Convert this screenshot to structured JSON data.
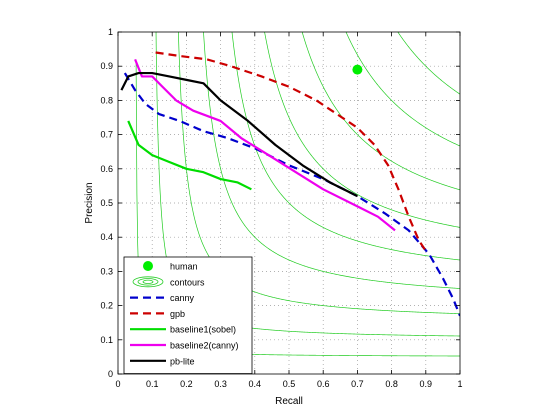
{
  "chart_data": {
    "type": "line",
    "xlabel": "Recall",
    "ylabel": "Precision",
    "xlim": [
      0,
      1
    ],
    "ylim": [
      0,
      1
    ],
    "xticks": [
      "0",
      "0.1",
      "0.2",
      "0.3",
      "0.4",
      "0.5",
      "0.6",
      "0.7",
      "0.8",
      "0.9",
      "1"
    ],
    "yticks": [
      "0",
      "0.1",
      "0.2",
      "0.3",
      "0.4",
      "0.5",
      "0.6",
      "0.7",
      "0.8",
      "0.9",
      "1"
    ],
    "grid": true,
    "grid_style": "dotted",
    "legend_position": "bottom-left",
    "contour_f_values": [
      0.1,
      0.2,
      0.3,
      0.4,
      0.5,
      0.6,
      0.7,
      0.8,
      0.9
    ],
    "series": [
      {
        "name": "human",
        "kind": "marker",
        "color": "#00ee00",
        "points": [
          [
            0.7,
            0.89
          ]
        ]
      },
      {
        "name": "contours",
        "kind": "contours",
        "color": "#22cc22",
        "points": []
      },
      {
        "name": "canny",
        "kind": "line",
        "dash": "dashed",
        "color": "#0000cc",
        "points": [
          [
            0.02,
            0.88
          ],
          [
            0.05,
            0.83
          ],
          [
            0.08,
            0.79
          ],
          [
            0.12,
            0.76
          ],
          [
            0.18,
            0.74
          ],
          [
            0.25,
            0.71
          ],
          [
            0.32,
            0.69
          ],
          [
            0.4,
            0.66
          ],
          [
            0.5,
            0.61
          ],
          [
            0.6,
            0.57
          ],
          [
            0.7,
            0.52
          ],
          [
            0.78,
            0.47
          ],
          [
            0.85,
            0.42
          ],
          [
            0.91,
            0.35
          ],
          [
            0.95,
            0.28
          ],
          [
            0.98,
            0.22
          ],
          [
            1.0,
            0.17
          ]
        ]
      },
      {
        "name": "gpb",
        "kind": "line",
        "dash": "dashed",
        "color": "#cc0000",
        "points": [
          [
            0.11,
            0.94
          ],
          [
            0.18,
            0.93
          ],
          [
            0.26,
            0.92
          ],
          [
            0.33,
            0.9
          ],
          [
            0.42,
            0.87
          ],
          [
            0.5,
            0.84
          ],
          [
            0.58,
            0.8
          ],
          [
            0.64,
            0.76
          ],
          [
            0.7,
            0.72
          ],
          [
            0.75,
            0.67
          ],
          [
            0.79,
            0.61
          ],
          [
            0.82,
            0.54
          ],
          [
            0.85,
            0.46
          ],
          [
            0.88,
            0.39
          ],
          [
            0.9,
            0.36
          ]
        ]
      },
      {
        "name": "baseline1(sobel)",
        "kind": "line",
        "dash": "solid",
        "color": "#00dd00",
        "points": [
          [
            0.03,
            0.74
          ],
          [
            0.06,
            0.67
          ],
          [
            0.1,
            0.64
          ],
          [
            0.15,
            0.62
          ],
          [
            0.2,
            0.6
          ],
          [
            0.25,
            0.59
          ],
          [
            0.3,
            0.57
          ],
          [
            0.35,
            0.56
          ],
          [
            0.39,
            0.54
          ]
        ]
      },
      {
        "name": "baseline2(canny)",
        "kind": "line",
        "dash": "solid",
        "color": "#ee00ee",
        "points": [
          [
            0.05,
            0.92
          ],
          [
            0.07,
            0.87
          ],
          [
            0.1,
            0.87
          ],
          [
            0.13,
            0.84
          ],
          [
            0.17,
            0.8
          ],
          [
            0.22,
            0.77
          ],
          [
            0.3,
            0.74
          ],
          [
            0.36,
            0.69
          ],
          [
            0.44,
            0.64
          ],
          [
            0.52,
            0.59
          ],
          [
            0.6,
            0.54
          ],
          [
            0.7,
            0.49
          ],
          [
            0.76,
            0.46
          ],
          [
            0.81,
            0.42
          ]
        ]
      },
      {
        "name": "pb-lite",
        "kind": "line",
        "dash": "solid",
        "color": "#000000",
        "points": [
          [
            0.01,
            0.83
          ],
          [
            0.03,
            0.87
          ],
          [
            0.06,
            0.88
          ],
          [
            0.1,
            0.88
          ],
          [
            0.15,
            0.87
          ],
          [
            0.2,
            0.86
          ],
          [
            0.25,
            0.85
          ],
          [
            0.3,
            0.8
          ],
          [
            0.38,
            0.74
          ],
          [
            0.46,
            0.67
          ],
          [
            0.54,
            0.61
          ],
          [
            0.62,
            0.56
          ],
          [
            0.7,
            0.52
          ]
        ]
      }
    ]
  }
}
